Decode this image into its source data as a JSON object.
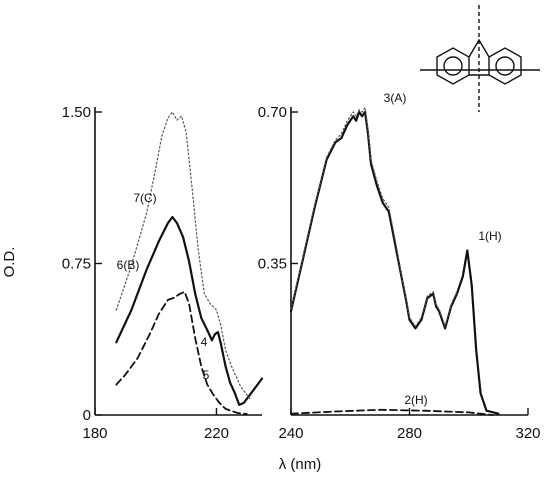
{
  "chart_data": [
    {
      "type": "line",
      "panel": "left",
      "ylabel": "O.D.",
      "xlim": [
        180,
        235
      ],
      "ylim": [
        0,
        1.5
      ],
      "x_ticks": [
        180,
        220
      ],
      "y_ticks": [
        0,
        0.75,
        1.5
      ],
      "x_tick_labels": [
        "180",
        "220"
      ],
      "y_tick_labels": [
        "0",
        "0.75",
        "1.50"
      ],
      "series": [
        {
          "name": "7(C)",
          "style": "solid",
          "color": "#111111",
          "x": [
            187,
            192,
            197,
            201,
            204,
            205.5,
            207,
            209,
            211,
            213,
            215,
            217,
            218.5,
            219.5,
            220.5,
            221.5,
            223,
            224.5,
            226,
            227.5,
            229,
            232,
            235
          ],
          "y": [
            0.36,
            0.52,
            0.72,
            0.86,
            0.95,
            0.98,
            0.95,
            0.88,
            0.76,
            0.6,
            0.48,
            0.42,
            0.37,
            0.4,
            0.41,
            0.35,
            0.24,
            0.16,
            0.11,
            0.05,
            0.06,
            0.12,
            0.18
          ]
        },
        {
          "name": "",
          "style": "dotted",
          "color": "#555555",
          "x": [
            187,
            192,
            197,
            200,
            202,
            204,
            205.5,
            207,
            208.5,
            210,
            212,
            214,
            216,
            218,
            220,
            221.5,
            223,
            225,
            228,
            231
          ],
          "y": [
            0.52,
            0.74,
            1.0,
            1.22,
            1.38,
            1.47,
            1.5,
            1.46,
            1.48,
            1.4,
            1.12,
            0.82,
            0.6,
            0.55,
            0.52,
            0.44,
            0.32,
            0.24,
            0.14,
            0.08
          ]
        },
        {
          "name": "6(B)",
          "style": "dashed",
          "color": "#111111",
          "x": [
            187,
            190,
            194,
            198,
            201,
            204,
            206,
            208,
            209.5,
            211,
            213,
            215,
            217,
            219,
            221,
            223,
            225,
            227,
            230
          ],
          "y": [
            0.15,
            0.2,
            0.28,
            0.4,
            0.5,
            0.57,
            0.58,
            0.6,
            0.61,
            0.55,
            0.38,
            0.24,
            0.15,
            0.1,
            0.06,
            0.03,
            0.02,
            0.01,
            0.005
          ]
        }
      ],
      "annotations": [
        "7(C)",
        "6(B)",
        "4",
        "5"
      ]
    },
    {
      "type": "line",
      "panel": "right",
      "xlabel": "λ (nm)",
      "xlim": [
        240,
        320
      ],
      "ylim": [
        0,
        0.7
      ],
      "x_ticks": [
        240,
        280,
        320
      ],
      "y_ticks": [
        0.35,
        0.7
      ],
      "x_tick_labels": [
        "240",
        "280",
        "320"
      ],
      "y_tick_labels": [
        "0.35",
        "0.70"
      ],
      "series": [
        {
          "name": "3(A)",
          "style": "solid",
          "color": "#111111",
          "x": [
            240,
            244,
            248,
            252,
            255,
            257,
            259,
            261,
            262,
            263,
            264,
            265,
            266,
            267,
            269,
            271,
            273,
            275,
            277,
            279,
            280,
            282,
            284,
            286,
            288,
            289,
            290,
            292,
            294,
            296,
            298,
            299.5,
            301,
            302.5,
            304,
            306,
            310
          ],
          "y": [
            0.24,
            0.36,
            0.48,
            0.59,
            0.63,
            0.64,
            0.67,
            0.69,
            0.68,
            0.7,
            0.69,
            0.7,
            0.65,
            0.58,
            0.53,
            0.49,
            0.47,
            0.4,
            0.33,
            0.26,
            0.22,
            0.2,
            0.22,
            0.27,
            0.28,
            0.25,
            0.24,
            0.2,
            0.25,
            0.28,
            0.32,
            0.38,
            0.3,
            0.15,
            0.05,
            0.01,
            0.003
          ]
        },
        {
          "name": "",
          "style": "dotted",
          "color": "#555555",
          "x": [
            240,
            244,
            248,
            252,
            255,
            257,
            259,
            261,
            262,
            263,
            264,
            265,
            266,
            267,
            269,
            271,
            273,
            275,
            277,
            279,
            280,
            282,
            284,
            286,
            288,
            289,
            290,
            292,
            294,
            296
          ],
          "y": [
            0.245,
            0.365,
            0.485,
            0.595,
            0.635,
            0.65,
            0.68,
            0.7,
            0.69,
            0.705,
            0.7,
            0.71,
            0.66,
            0.59,
            0.54,
            0.5,
            0.48,
            0.41,
            0.335,
            0.265,
            0.225,
            0.205,
            0.225,
            0.275,
            0.285,
            0.255,
            0.245,
            0.205,
            0.255,
            0.285
          ]
        },
        {
          "name": "2(H)",
          "style": "dashed",
          "color": "#111111",
          "x": [
            240,
            255,
            270,
            285,
            300,
            308
          ],
          "y": [
            0.003,
            0.008,
            0.012,
            0.01,
            0.006,
            0.0
          ]
        }
      ],
      "annotations": [
        "3(A)",
        "1(H)",
        "2(H)"
      ]
    }
  ]
}
